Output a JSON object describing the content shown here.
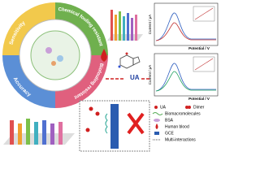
{
  "ring": {
    "sensitivity": "Sensitivity",
    "chemical": "Chemical fouling resistant",
    "bio": "Biofouling resistant",
    "accuracy": "Accuracy"
  },
  "center": {
    "label": "UA"
  },
  "plots": [
    {
      "ylabel": "Current / μA",
      "xlabel": "Potential / V"
    },
    {
      "ylabel": "Current / μA",
      "xlabel": "Potential / V"
    }
  ],
  "legend": [
    "UA",
    "Dimer",
    "Biomacromolecules",
    "BSA",
    "Human blood",
    "GCE",
    "Multi-interactions"
  ]
}
